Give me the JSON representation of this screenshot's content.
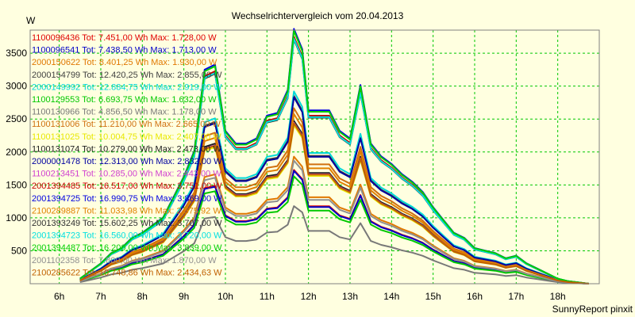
{
  "chart_data": {
    "type": "line",
    "title": "Wechselrichtervergleich vom 20.04.2013",
    "ylabel": "W",
    "footer": "SunnyReport pinxit",
    "x_ticks": [
      "6h",
      "7h",
      "8h",
      "9h",
      "10h",
      "11h",
      "12h",
      "13h",
      "14h",
      "15h",
      "16h",
      "17h",
      "18h"
    ],
    "y_ticks": [
      500,
      1000,
      1500,
      2000,
      2500,
      3000,
      3500
    ],
    "xlim": [
      5.3,
      19.0
    ],
    "ylim": [
      0,
      3850
    ],
    "grid": true,
    "legend_placement": "left",
    "x": [
      6.5,
      6.75,
      7.0,
      7.25,
      7.5,
      7.75,
      8.0,
      8.25,
      8.5,
      8.75,
      9.0,
      9.25,
      9.5,
      9.75,
      10.0,
      10.25,
      10.5,
      10.75,
      11.0,
      11.25,
      11.5,
      11.65,
      11.85,
      12.0,
      12.25,
      12.5,
      12.75,
      13.0,
      13.25,
      13.5,
      13.75,
      14.0,
      14.25,
      14.5,
      14.75,
      15.0,
      15.25,
      15.5,
      15.75,
      16.0,
      16.25,
      16.5,
      16.75,
      17.0,
      17.25,
      17.5,
      17.75,
      18.0,
      18.25,
      18.5,
      18.75
    ],
    "shape": [
      0.02,
      0.05,
      0.08,
      0.12,
      0.14,
      0.18,
      0.2,
      0.23,
      0.26,
      0.34,
      0.42,
      0.52,
      0.84,
      0.86,
      0.6,
      0.55,
      0.55,
      0.57,
      0.66,
      0.67,
      0.76,
      1.0,
      0.92,
      0.68,
      0.68,
      0.68,
      0.6,
      0.57,
      0.78,
      0.55,
      0.5,
      0.47,
      0.43,
      0.4,
      0.36,
      0.3,
      0.25,
      0.2,
      0.18,
      0.14,
      0.13,
      0.12,
      0.1,
      0.11,
      0.08,
      0.06,
      0.04,
      0.02,
      0.01,
      0.005,
      0.0
    ],
    "series": [
      {
        "label": "1100096436 Tot: 7.451,00 Wh Max: 1.728,00 W",
        "peak": 1728,
        "color": "#e00000"
      },
      {
        "label": "1100096541 Tot: 7.438,50 Wh Max: 1.713,00 W",
        "peak": 1713,
        "color": "#0000c8"
      },
      {
        "label": "2000150622 Tot: 8.401,25 Wh Max: 1.930,00 W",
        "peak": 1930,
        "color": "#e07800"
      },
      {
        "label": "2000154799 Tot: 12.420,25 Wh Max: 2.855,00 W",
        "peak": 2855,
        "color": "#404040"
      },
      {
        "label": "2000149992 Tot: 12.884,75 Wh Max: 2.919,00 W",
        "peak": 2919,
        "color": "#00d8d8"
      },
      {
        "label": "1100129553 Tot: 6.693,75 Wh Max: 1.632,00 W",
        "peak": 1632,
        "color": "#00c800"
      },
      {
        "label": "1100130966 Tot: 4.856,50 Wh Max: 1.178,00 W",
        "peak": 1178,
        "color": "#787878"
      },
      {
        "label": "1100131006 Tot: 11.210,00 Wh Max: 2.665,00 W",
        "peak": 2665,
        "color": "#d07010"
      },
      {
        "label": "1100131025 Tot: 10.004,75 Wh Max: 2.407,00 W",
        "peak": 2407,
        "color": "#e8e800"
      },
      {
        "label": "1100131074 Tot: 10.279,00 Wh Max: 2.473,00 W",
        "peak": 2473,
        "color": "#202020"
      },
      {
        "label": "2000001478 Tot: 12.313,00 Wh Max: 2.832,00 W",
        "peak": 2832,
        "color": "#0000a0"
      },
      {
        "label": "1100213451 Tot: 10.285,00 Wh Max: 2.443,00 W",
        "peak": 2443,
        "color": "#d040d0"
      },
      {
        "label": "2001394485 Tot: 16.517,00 Wh Max: 3.751,00 W",
        "peak": 3751,
        "color": "#c80000"
      },
      {
        "label": "2001394725 Tot: 16.990,75 Wh Max: 3.869,00 W",
        "peak": 3869,
        "color": "#0000e0"
      },
      {
        "label": "2100289887 Tot: 11.033,98 Wh Max: 2.575,92 W",
        "peak": 2576,
        "color": "#e08000"
      },
      {
        "label": "2001393249 Tot: 15.602,25 Wh Max: 3.707,00 W",
        "peak": 3707,
        "color": "#303030"
      },
      {
        "label": "2001394723 Tot: 16.560,00 Wh Max: 3.720,00 W",
        "peak": 3720,
        "color": "#00e0e0"
      },
      {
        "label": "2001394487 Tot: 16.200,00 Wh Max: 3.839,00 W",
        "peak": 3839,
        "color": "#00d000"
      },
      {
        "label": "2001102358 Tot: 7.800,00 Wh Max: 1.870,00 W",
        "peak": 1870,
        "color": "#909090"
      },
      {
        "label": "2100285622 Tot: 10.748,86 Wh Max: 2.434,63 W",
        "peak": 2435,
        "color": "#c06000"
      }
    ]
  }
}
